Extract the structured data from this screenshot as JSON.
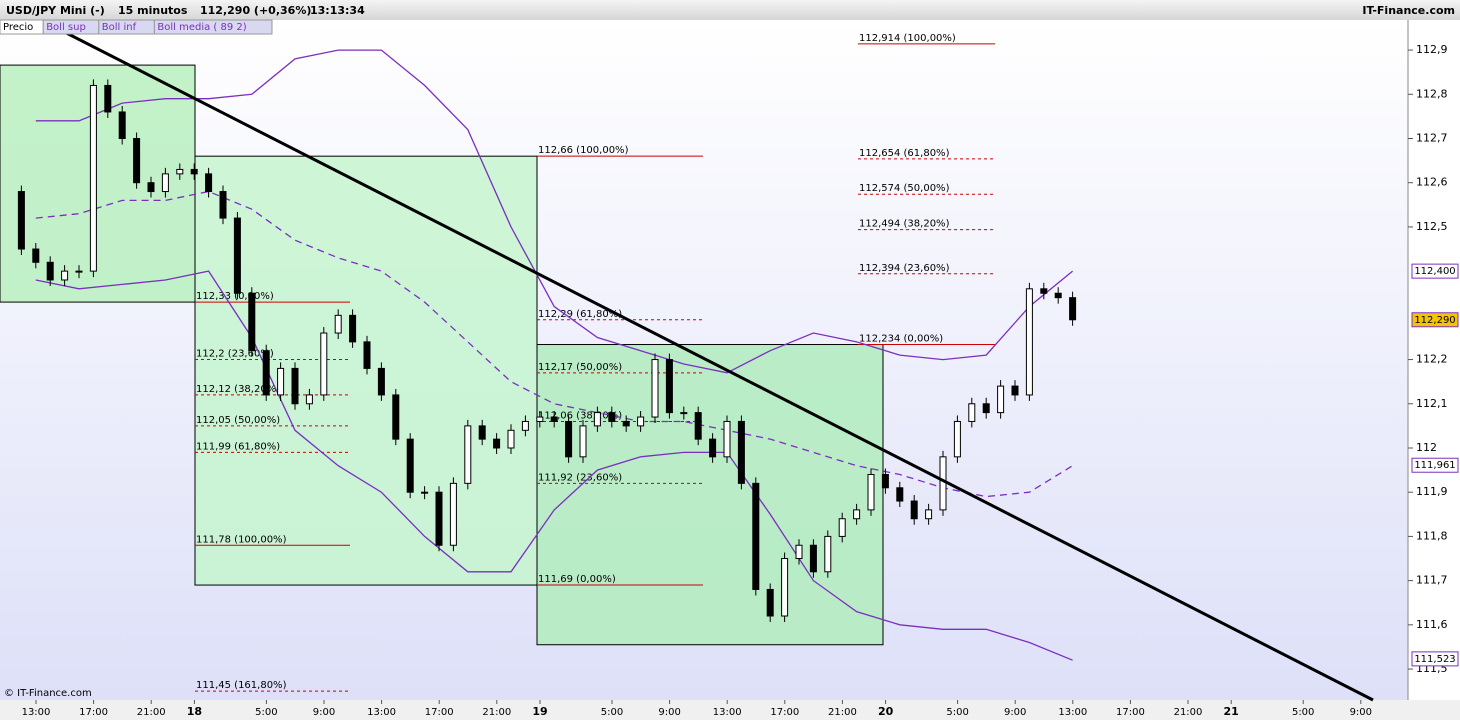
{
  "header": {
    "symbol": "USD/JPY Mini (-)",
    "interval": "15 minutos",
    "price": "112,290 (+0,36%)",
    "time": "13:13:34",
    "brand": "IT-Finance.com"
  },
  "footer": "© IT-Finance.com",
  "chart_data": {
    "type": "candlestick",
    "series": [
      {
        "name": "Precio",
        "color": "#000000",
        "values": [
          112.58,
          112.45,
          112.42,
          112.38,
          112.4,
          112.4,
          112.82,
          112.76,
          112.7,
          112.6,
          112.58,
          112.62,
          112.63,
          112.62,
          112.58,
          112.52,
          112.35,
          112.22,
          112.12,
          112.18,
          112.1,
          112.12,
          112.26,
          112.3,
          112.24,
          112.18,
          112.12,
          112.02,
          111.9,
          111.9,
          111.78,
          111.92,
          112.05,
          112.02,
          112.0,
          112.04,
          112.06,
          112.07,
          112.06,
          111.98,
          112.05,
          112.08,
          112.06,
          112.05,
          112.07,
          112.2,
          112.08,
          112.08,
          112.02,
          111.98,
          112.06,
          111.92,
          111.68,
          111.62,
          111.75,
          111.78,
          111.72,
          111.8,
          111.84,
          111.86,
          111.94,
          111.91,
          111.88,
          111.84,
          111.86,
          111.98,
          112.06,
          112.1,
          112.08,
          112.14,
          112.12,
          112.36,
          112.35,
          112.34,
          112.29
        ]
      },
      {
        "name": "Boll sup",
        "color": "#7b2fbf",
        "values": [
          112.74,
          112.74,
          112.78,
          112.79,
          112.79,
          112.8,
          112.88,
          112.9,
          112.9,
          112.82,
          112.72,
          112.5,
          112.32,
          112.25,
          112.22,
          112.19,
          112.17,
          112.22,
          112.26,
          112.24,
          112.21,
          112.2,
          112.21,
          112.32,
          112.4
        ]
      },
      {
        "name": "Boll inf",
        "color": "#7b2fbf",
        "values": [
          112.38,
          112.36,
          112.37,
          112.38,
          112.4,
          112.25,
          112.04,
          111.96,
          111.9,
          111.8,
          111.72,
          111.72,
          111.86,
          111.95,
          111.98,
          111.99,
          111.99,
          111.85,
          111.7,
          111.63,
          111.6,
          111.59,
          111.59,
          111.56,
          111.52
        ]
      },
      {
        "name": "Boll media ( 89 2)",
        "color": "#7b2fbf",
        "dashed": true,
        "values": [
          112.52,
          112.53,
          112.56,
          112.56,
          112.58,
          112.54,
          112.47,
          112.43,
          112.4,
          112.33,
          112.24,
          112.15,
          112.1,
          112.08,
          112.06,
          112.06,
          112.04,
          112.02,
          111.99,
          111.96,
          111.94,
          111.91,
          111.89,
          111.9,
          111.96
        ]
      }
    ],
    "ylim": [
      111.43,
      112.968
    ],
    "yticks": [
      {
        "value": 112.9,
        "label": "112,9"
      },
      {
        "value": 112.8,
        "label": "112,8"
      },
      {
        "value": 112.7,
        "label": "112,7"
      },
      {
        "value": 112.6,
        "label": "112,6"
      },
      {
        "value": 112.5,
        "label": "112,5"
      },
      {
        "value": 112.2,
        "label": "112,2"
      },
      {
        "value": 112.1,
        "label": "112,1"
      },
      112,
      {
        "value": 111.9,
        "label": "111,9"
      },
      {
        "value": 111.8,
        "label": "111,8"
      },
      {
        "value": 111.7,
        "label": "111,7"
      },
      {
        "value": 111.6,
        "label": "111,6"
      },
      {
        "value": 111.5,
        "label": "111,5"
      }
    ],
    "xticks": [
      "13:00",
      "17:00",
      "21:00",
      "18",
      "5:00",
      "9:00",
      "13:00",
      "17:00",
      "21:00",
      "19",
      "5:00",
      "9:00",
      "13:00",
      "17:00",
      "21:00",
      "20",
      "5:00",
      "9:00",
      "13:00",
      "17:00",
      "21:00",
      "21",
      "5:00",
      "9:00"
    ],
    "price_tags": [
      {
        "value": 112.4,
        "label": "112,400",
        "color": "#ffffff"
      },
      {
        "value": 112.29,
        "label": "112,290",
        "color": "#f5c400"
      },
      {
        "value": 111.961,
        "label": "111,961",
        "color": "#ffffff"
      },
      {
        "value": 111.523,
        "label": "111,523",
        "color": "#ffffff"
      }
    ],
    "trendline": [
      112.946,
      111.43
    ],
    "zones": [
      [
        112.866,
        112.33
      ],
      [
        112.66,
        111.69
      ],
      [
        112.234,
        111.555
      ]
    ],
    "fib_sets": [
      [
        {
          "value": 112.33,
          "label": "112,33 (0,00%)"
        },
        {
          "value": 112.2,
          "label": "112,2 (23,60%)",
          "dashed": true
        },
        {
          "value": 112.12,
          "label": "112,12 (38,20%)",
          "dashed": true
        },
        {
          "value": 112.05,
          "label": "112,05 (50,00%)",
          "dashed": true
        },
        {
          "value": 111.99,
          "label": "111,99 (61,80%)",
          "dashed": true
        },
        {
          "value": 111.78,
          "label": "111,78 (100,00%)"
        },
        {
          "value": 111.45,
          "label": "111,45 (161,80%)",
          "dashed": true
        }
      ],
      [
        {
          "value": 112.66,
          "label": "112,66 (100,00%)"
        },
        {
          "value": 112.29,
          "label": "112,29 (61,80%)",
          "dashed": true
        },
        {
          "value": 112.17,
          "label": "112,17 (50,00%)",
          "dashed": true
        },
        {
          "value": 112.06,
          "label": "112,06 (38,20%)",
          "dashed": true
        },
        {
          "value": 111.92,
          "label": "111,92 (23,60%)",
          "dashed": true
        },
        {
          "value": 111.69,
          "label": "111,69 (0,00%)"
        }
      ],
      [
        {
          "value": 112.914,
          "label": "112,914 (100,00%)"
        },
        {
          "value": 112.654,
          "label": "112,654 (61,80%)",
          "dashed": true
        },
        {
          "value": 112.574,
          "label": "112,574 (50,00%)",
          "dashed": true
        },
        {
          "value": 112.494,
          "label": "112,494 (38,20%)",
          "dashed": true
        },
        {
          "value": 112.394,
          "label": "112,394 (23,60%)",
          "dashed": true
        },
        {
          "value": 112.234,
          "label": "112,234 (0,00%)"
        }
      ]
    ]
  }
}
